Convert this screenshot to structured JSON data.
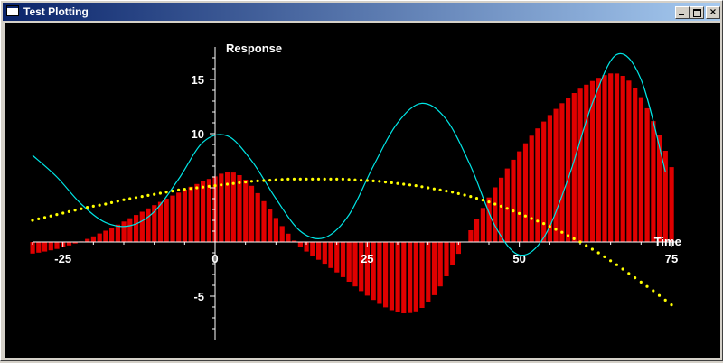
{
  "window": {
    "title": "Test Plotting",
    "buttons": {
      "minimize": "",
      "maximize": "",
      "close": "×"
    }
  },
  "chart_data": {
    "type": "bar",
    "xlabel": "Time",
    "ylabel": "Response",
    "xlim": [
      -30,
      76
    ],
    "ylim": [
      -9,
      18
    ],
    "x_ticks": [
      -25,
      0,
      25,
      50,
      75
    ],
    "y_ticks": [
      -5,
      10,
      15
    ],
    "colors": {
      "background": "#000000",
      "bars": "#e00000",
      "line": "#00e5e5",
      "dots": "#ffff00",
      "axes": "#ffffff"
    },
    "series": [
      {
        "kind": "bar",
        "x": [
          -30,
          -29,
          -28,
          -27,
          -26,
          -25,
          -24,
          -23,
          -22,
          -21,
          -20,
          -19,
          -18,
          -17,
          -16,
          -15,
          -14,
          -13,
          -12,
          -11,
          -10,
          -9,
          -8,
          -7,
          -6,
          -5,
          -4,
          -3,
          -2,
          -1,
          0,
          1,
          2,
          3,
          4,
          5,
          6,
          7,
          8,
          9,
          10,
          11,
          12,
          13,
          14,
          15,
          16,
          17,
          18,
          19,
          20,
          21,
          22,
          23,
          24,
          25,
          26,
          27,
          28,
          29,
          30,
          31,
          32,
          33,
          34,
          35,
          36,
          37,
          38,
          39,
          40,
          41,
          42,
          43,
          44,
          45,
          46,
          47,
          48,
          49,
          50,
          51,
          52,
          53,
          54,
          55,
          56,
          57,
          58,
          59,
          60,
          61,
          62,
          63,
          64,
          65,
          66,
          67,
          68,
          69,
          70,
          71,
          72,
          73,
          74,
          75
        ],
        "values": [
          -1.07,
          -0.98,
          -0.88,
          -0.77,
          -0.64,
          -0.49,
          -0.32,
          -0.14,
          0.06,
          0.28,
          0.52,
          0.78,
          1.04,
          1.32,
          1.6,
          1.89,
          2.19,
          2.49,
          2.79,
          3.1,
          3.4,
          3.7,
          3.99,
          4.28,
          4.56,
          4.83,
          5.1,
          5.35,
          5.59,
          5.82,
          6.05,
          6.3,
          6.45,
          6.41,
          6.17,
          5.75,
          5.18,
          4.51,
          3.77,
          3.0,
          2.22,
          1.47,
          0.77,
          0.13,
          -0.42,
          -0.88,
          -1.27,
          -1.64,
          -2.01,
          -2.4,
          -2.81,
          -3.24,
          -3.67,
          -4.1,
          -4.53,
          -4.95,
          -5.35,
          -5.71,
          -6.03,
          -6.29,
          -6.48,
          -6.58,
          -6.56,
          -6.4,
          -6.08,
          -5.58,
          -4.91,
          -4.1,
          -3.17,
          -2.16,
          -1.09,
          0.0,
          1.08,
          2.13,
          3.14,
          4.11,
          5.04,
          5.93,
          6.78,
          7.59,
          8.37,
          9.11,
          9.81,
          10.48,
          11.12,
          11.72,
          12.28,
          12.81,
          13.3,
          13.75,
          14.15,
          14.52,
          14.86,
          15.15,
          15.4,
          15.56,
          15.55,
          15.33,
          14.89,
          14.23,
          13.37,
          12.34,
          11.16,
          9.84,
          8.42,
          6.91
        ]
      },
      {
        "kind": "line",
        "x": [
          -30,
          -26,
          -22,
          -18,
          -14,
          -10,
          -6,
          -2,
          2,
          6,
          10,
          14,
          18,
          22,
          26,
          30,
          34,
          38,
          42,
          46,
          50,
          54,
          58,
          62,
          66,
          70,
          74
        ],
        "values": [
          8.0,
          6.0,
          3.5,
          1.8,
          1.5,
          2.8,
          5.8,
          9.2,
          9.8,
          7.5,
          4.0,
          1.0,
          0.4,
          2.5,
          7.0,
          11.0,
          12.8,
          11.3,
          7.0,
          1.5,
          -1.2,
          0.4,
          5.8,
          12.8,
          17.3,
          15.0,
          6.5
        ]
      },
      {
        "kind": "scatter",
        "x": [
          -30,
          -27,
          -24,
          -21,
          -18,
          -15,
          -12,
          -9,
          -6,
          -3,
          0,
          3,
          6,
          9,
          12,
          15,
          18,
          21,
          24,
          27,
          30,
          33,
          36,
          39,
          42,
          45,
          48,
          51,
          54,
          57,
          60,
          63,
          66,
          69,
          72,
          75
        ],
        "values": [
          2.0,
          2.4,
          2.8,
          3.2,
          3.5,
          3.9,
          4.2,
          4.5,
          4.8,
          5.0,
          5.2,
          5.4,
          5.6,
          5.7,
          5.8,
          5.8,
          5.8,
          5.8,
          5.7,
          5.6,
          5.4,
          5.2,
          4.9,
          4.6,
          4.2,
          3.7,
          3.1,
          2.4,
          1.7,
          0.9,
          0.0,
          -1.0,
          -2.1,
          -3.3,
          -4.5,
          -5.8
        ]
      }
    ]
  }
}
